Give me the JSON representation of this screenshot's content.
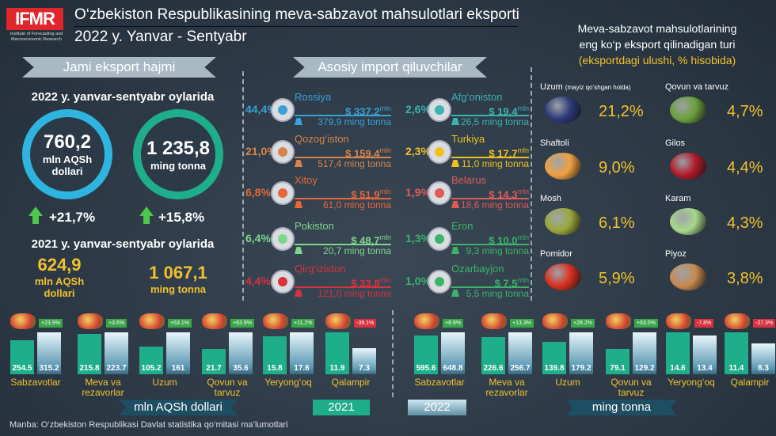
{
  "header": {
    "logo": "IFMR",
    "logo_sub": "Institute of Forecasting and Macroeconomic Research",
    "title": "O‘zbekiston Respublikasining meva-sabzavot mahsulotlari eksporti",
    "subtitle": "2022 y. Yanvar - Sentyabr"
  },
  "total": {
    "banner": "Jami eksport hajmi",
    "period_2022": "2022 y. yanvar-sentyabr oylarida",
    "value_usd": "760,2",
    "unit_usd": "mln AQSh dollari",
    "value_t": "1 235,8",
    "unit_t": "ming tonna",
    "growth_usd": "+21,7%",
    "growth_t": "+15,8%",
    "period_2021": "2021 y. yanvar-sentyabr oylarida",
    "prev_usd": "624,9",
    "prev_unit_usd": "mln AQSh dollari",
    "prev_t": "1 067,1",
    "prev_unit_t": "ming tonna"
  },
  "importers": {
    "banner": "Asosiy import qiluvchilar",
    "mln": "mln",
    "items": [
      {
        "pct": "44,4%",
        "name": "Rossiya",
        "usd": "$ 337,2",
        "tons": "379,9 ming tonna",
        "color": "#3aa0d8",
        "share": 44.4
      },
      {
        "pct": "21,0%",
        "name": "Qozog‘iston",
        "usd": "$ 159,4",
        "tons": "517,4 ming tonna",
        "color": "#d9834a",
        "share": 21.0
      },
      {
        "pct": "6,8%",
        "name": "Xitoy",
        "usd": "$ 51,9",
        "tons": "61,0 ming tonna",
        "color": "#e8663a",
        "share": 6.8
      },
      {
        "pct": "6,4%",
        "name": "Pokiston",
        "usd": "$ 48,7",
        "tons": "20,7 ming tonna",
        "color": "#7fd68a",
        "share": 6.4
      },
      {
        "pct": "4,4%",
        "name": "Qirg‘iziston",
        "usd": "$ 33,8",
        "tons": "121,0 ming tonna",
        "color": "#d8323e",
        "share": 4.4
      },
      {
        "pct": "2,6%",
        "name": "Afg‘oniston",
        "usd": "$ 19,4",
        "tons": "26,5 ming tonna",
        "color": "#3bb3b0",
        "share": 2.6
      },
      {
        "pct": "2,3%",
        "name": "Turkiya",
        "usd": "$ 17,7",
        "tons": "11,0 ming tonna",
        "color": "#f0c020",
        "share": 2.3
      },
      {
        "pct": "1,9%",
        "name": "Belarus",
        "usd": "$ 14,3",
        "tons": "18,6 ming tonna",
        "color": "#e05a5a",
        "share": 1.9
      },
      {
        "pct": "1,3%",
        "name": "Eron",
        "usd": "$ 10,0",
        "tons": "9,3 ming tonna",
        "color": "#3bb36a",
        "share": 1.3
      },
      {
        "pct": "1,0%",
        "name": "Ozarbayjon",
        "usd": "$ 7,5",
        "tons": "5,5 ming tonna",
        "color": "#3bb36a",
        "share": 1.0
      }
    ]
  },
  "products": {
    "title1": "Meva-sabzavot mahsulotlarining",
    "title2": "eng ko‘p eksport qilinadigan turi",
    "title3": "(eksportdagi ulushi, % hisobida)",
    "items": [
      {
        "label": "Uzum",
        "note": "(mayiz qo‘shgan holda)",
        "pct": "21,2%",
        "color": "#2b3a7a"
      },
      {
        "label": "Qovun va tarvuz",
        "note": "",
        "pct": "4,7%",
        "color": "#6ba03a"
      },
      {
        "label": "Shaftoli",
        "note": "",
        "pct": "9,0%",
        "color": "#f0a040"
      },
      {
        "label": "Gilos",
        "note": "",
        "pct": "4,4%",
        "color": "#b01a2a"
      },
      {
        "label": "Mosh",
        "note": "",
        "pct": "6,1%",
        "color": "#9aa83a"
      },
      {
        "label": "Karam",
        "note": "",
        "pct": "4,3%",
        "color": "#a8d88a"
      },
      {
        "label": "Pomidor",
        "note": "",
        "pct": "5,9%",
        "color": "#d8301e"
      },
      {
        "label": "Piyoz",
        "note": "",
        "pct": "3,8%",
        "color": "#c88a50"
      }
    ]
  },
  "chart_data": [
    {
      "type": "bar",
      "title": "mln AQSh dollari",
      "categories": [
        "Sabzavotlar",
        "Meva va rezavorlar",
        "Uzum",
        "Qovun va tarvuz",
        "Yeryong‘oq",
        "Qalampir"
      ],
      "series": [
        {
          "name": "2021",
          "values": [
            254.5,
            215.8,
            105.2,
            21.7,
            15.8,
            11.9
          ]
        },
        {
          "name": "2022",
          "values": [
            315.2,
            223.7,
            161.0,
            35.6,
            17.6,
            7.3
          ]
        }
      ],
      "changes": [
        "+23.9%",
        "+3.6%",
        "+53.1%",
        "+63.9%",
        "+11.2%",
        "-39.1%"
      ]
    },
    {
      "type": "bar",
      "title": "ming tonna",
      "categories": [
        "Sabzavotlar",
        "Meva va rezavorlar",
        "Uzum",
        "Qovun va tarvuz",
        "Yeryong‘oq",
        "Qalampir"
      ],
      "series": [
        {
          "name": "2021",
          "values": [
            595.6,
            226.6,
            139.8,
            79.1,
            14.6,
            11.4
          ]
        },
        {
          "name": "2022",
          "values": [
            648.8,
            256.7,
            179.2,
            129.2,
            13.4,
            8.3
          ]
        }
      ],
      "changes": [
        "+8.9%",
        "+13.3%",
        "+28.2%",
        "+63.5%",
        "-7.8%",
        "-27.3%"
      ]
    }
  ],
  "legend": {
    "unit_usd": "mln AQSh dollari",
    "y2021": "2021",
    "y2022": "2022",
    "unit_t": "ming tonna"
  },
  "source": "Manba: O‘zbekiston Respublikasi Davlat statistika qo‘mitasi ma’lumotlari",
  "colors": {
    "teal": "#1fae8a",
    "blue": "#2fb4e0",
    "yellow": "#f2c12e",
    "up": "#3aa64a",
    "down": "#d8323e"
  }
}
